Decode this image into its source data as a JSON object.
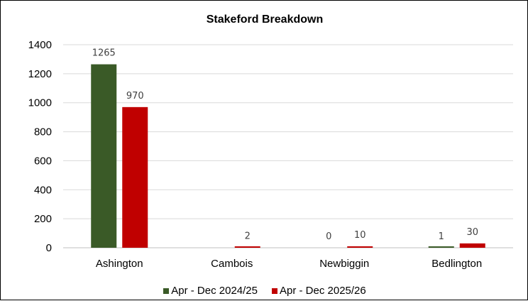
{
  "chart_data": {
    "type": "bar",
    "title": "Stakeford Breakdown",
    "categories": [
      "Ashington",
      "Cambois",
      "Newbiggin",
      "Bedlington"
    ],
    "series": [
      {
        "name": "Apr - Dec 2024/25",
        "color": "#3a5a27",
        "values": [
          1265,
          null,
          0,
          1
        ],
        "labels": [
          "1265",
          "",
          "0",
          "1"
        ]
      },
      {
        "name": "Apr - Dec 2025/26",
        "color": "#c00000",
        "values": [
          970,
          2,
          10,
          30
        ],
        "labels": [
          "970",
          "2",
          "10",
          "30"
        ]
      }
    ],
    "ylim": [
      0,
      1400
    ],
    "yticks": [
      0,
      200,
      400,
      600,
      800,
      1000,
      1200,
      1400
    ],
    "grid": true,
    "legend_position": "bottom"
  }
}
